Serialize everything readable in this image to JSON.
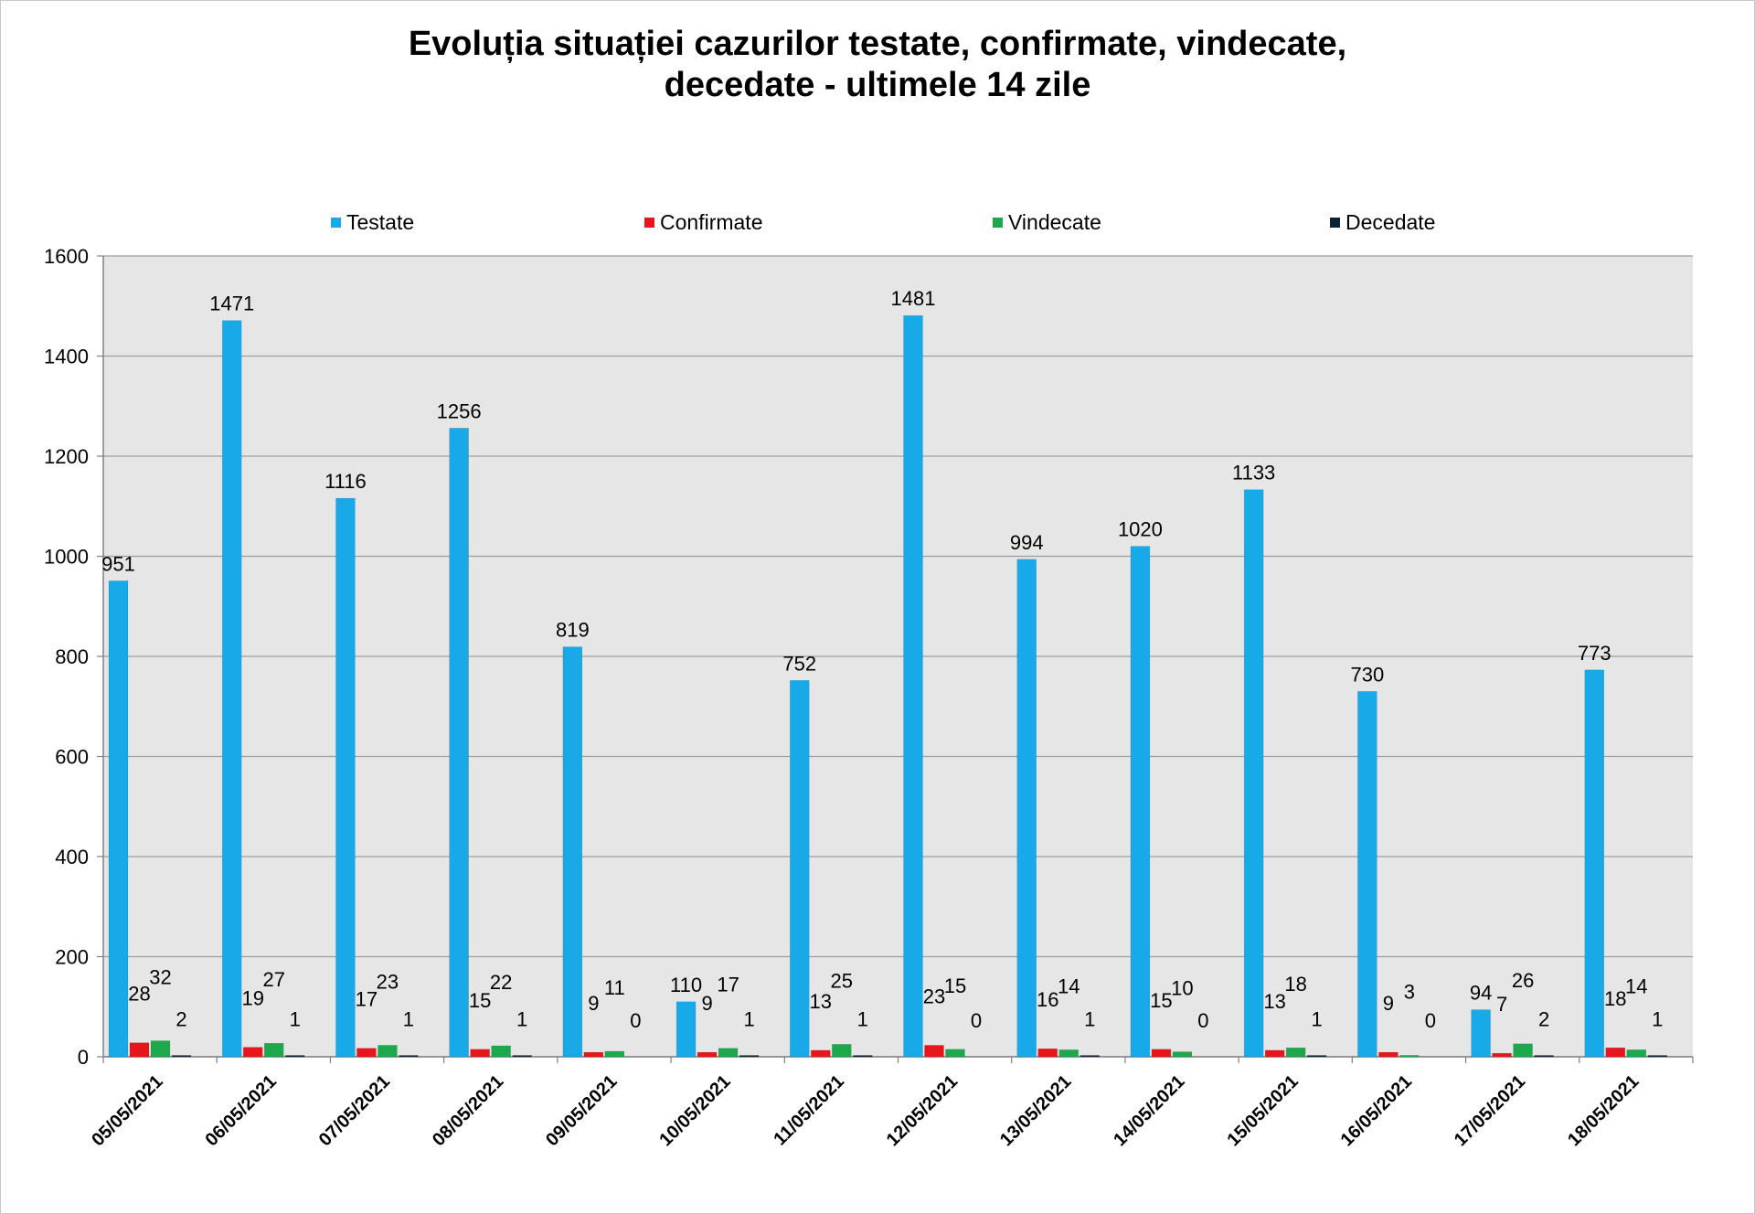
{
  "chart_data": {
    "type": "bar",
    "title_line1": "Evoluția situației cazurilor testate, confirmate, vindecate,",
    "title_line2": "decedate -  ultimele 14 zile",
    "categories": [
      "05/05/2021",
      "06/05/2021",
      "07/05/2021",
      "08/05/2021",
      "09/05/2021",
      "10/05/2021",
      "11/05/2021",
      "12/05/2021",
      "13/05/2021",
      "14/05/2021",
      "15/05/2021",
      "16/05/2021",
      "17/05/2021",
      "18/05/2021"
    ],
    "series": [
      {
        "name": "Testate",
        "color": "#18a9e8",
        "values": [
          951,
          1471,
          1116,
          1256,
          819,
          110,
          752,
          1481,
          994,
          1020,
          1133,
          730,
          94,
          773
        ]
      },
      {
        "name": "Confirmate",
        "color": "#e8161b",
        "values": [
          28,
          19,
          17,
          15,
          9,
          9,
          13,
          23,
          16,
          15,
          13,
          9,
          7,
          18
        ]
      },
      {
        "name": "Vindecate",
        "color": "#1ea84e",
        "values": [
          32,
          27,
          23,
          22,
          11,
          17,
          25,
          15,
          14,
          10,
          18,
          3,
          26,
          14
        ]
      },
      {
        "name": "Decedate",
        "color": "#0e2233",
        "values": [
          2,
          1,
          1,
          1,
          0,
          1,
          1,
          0,
          1,
          0,
          1,
          0,
          2,
          1
        ]
      }
    ],
    "ylim": [
      0,
      1600
    ],
    "yticks": [
      0,
      200,
      400,
      600,
      800,
      1000,
      1200,
      1400,
      1600
    ],
    "grid": true,
    "legend_position": "top",
    "xlabel": "",
    "ylabel": ""
  }
}
